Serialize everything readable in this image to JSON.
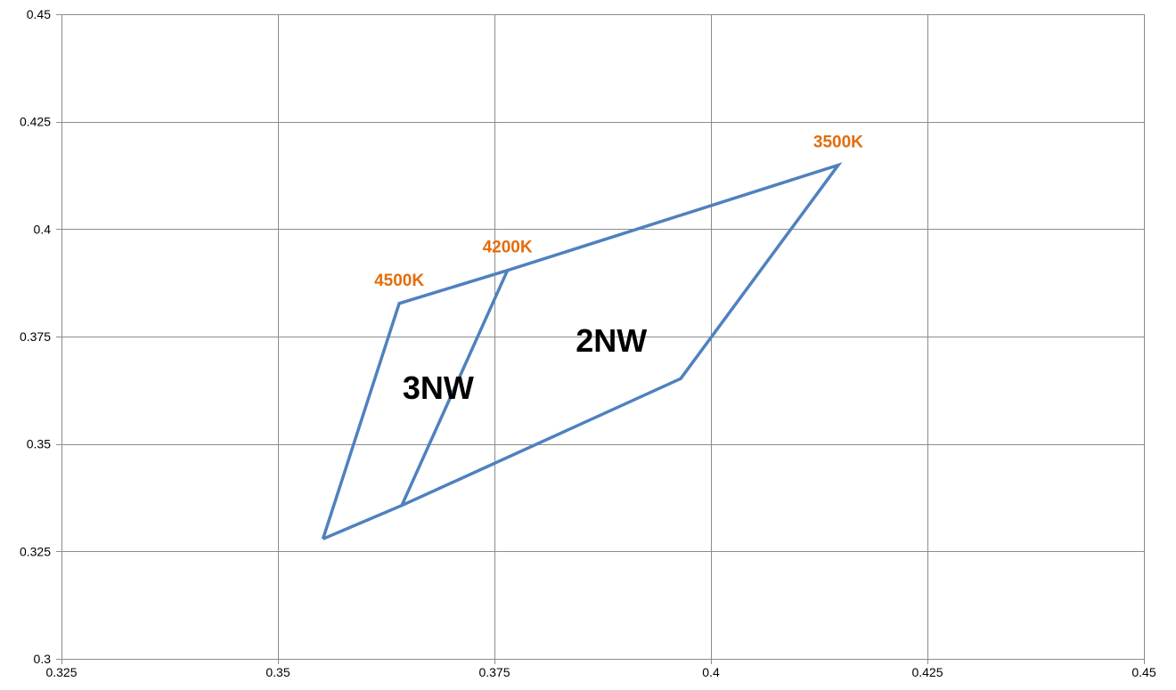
{
  "chart_data": {
    "type": "scatter",
    "title": "",
    "xlabel": "",
    "ylabel": "",
    "xlim": [
      0.325,
      0.45
    ],
    "ylim": [
      0.3,
      0.45
    ],
    "grid": true,
    "x_ticks": [
      0.325,
      0.35,
      0.375,
      0.4,
      0.425,
      0.45
    ],
    "y_ticks": [
      0.3,
      0.325,
      0.35,
      0.375,
      0.4,
      0.425,
      0.45
    ],
    "x_tick_labels": [
      "0.325",
      "0.35",
      "0.375",
      "0.4",
      "0.425",
      "0.45"
    ],
    "y_tick_labels": [
      "0.3",
      "0.325",
      "0.35",
      "0.375",
      "0.4",
      "0.425",
      "0.45"
    ],
    "line_color": "#4f81bd",
    "series": [
      {
        "points": [
          {
            "x": 0.3552,
            "y": 0.3279
          },
          {
            "x": 0.364,
            "y": 0.3827
          },
          {
            "x": 0.3765,
            "y": 0.3904
          },
          {
            "x": 0.4147,
            "y": 0.4149
          },
          {
            "x": 0.3965,
            "y": 0.3652
          },
          {
            "x": 0.3643,
            "y": 0.3357
          },
          {
            "x": 0.3552,
            "y": 0.3279
          }
        ]
      },
      {
        "points": [
          {
            "x": 0.3765,
            "y": 0.3904
          },
          {
            "x": 0.3643,
            "y": 0.3357
          }
        ]
      }
    ],
    "point_labels": [
      {
        "text": "3500K",
        "x": 0.4147,
        "y": 0.4149
      },
      {
        "text": "4200K",
        "x": 0.3765,
        "y": 0.3904
      },
      {
        "text": "4500K",
        "x": 0.364,
        "y": 0.3827
      }
    ],
    "point_label_color": "#e46c0a",
    "region_labels": [
      {
        "text": "2NW",
        "x": 0.3885,
        "y": 0.3735
      },
      {
        "text": "3NW",
        "x": 0.3685,
        "y": 0.3625
      }
    ]
  }
}
